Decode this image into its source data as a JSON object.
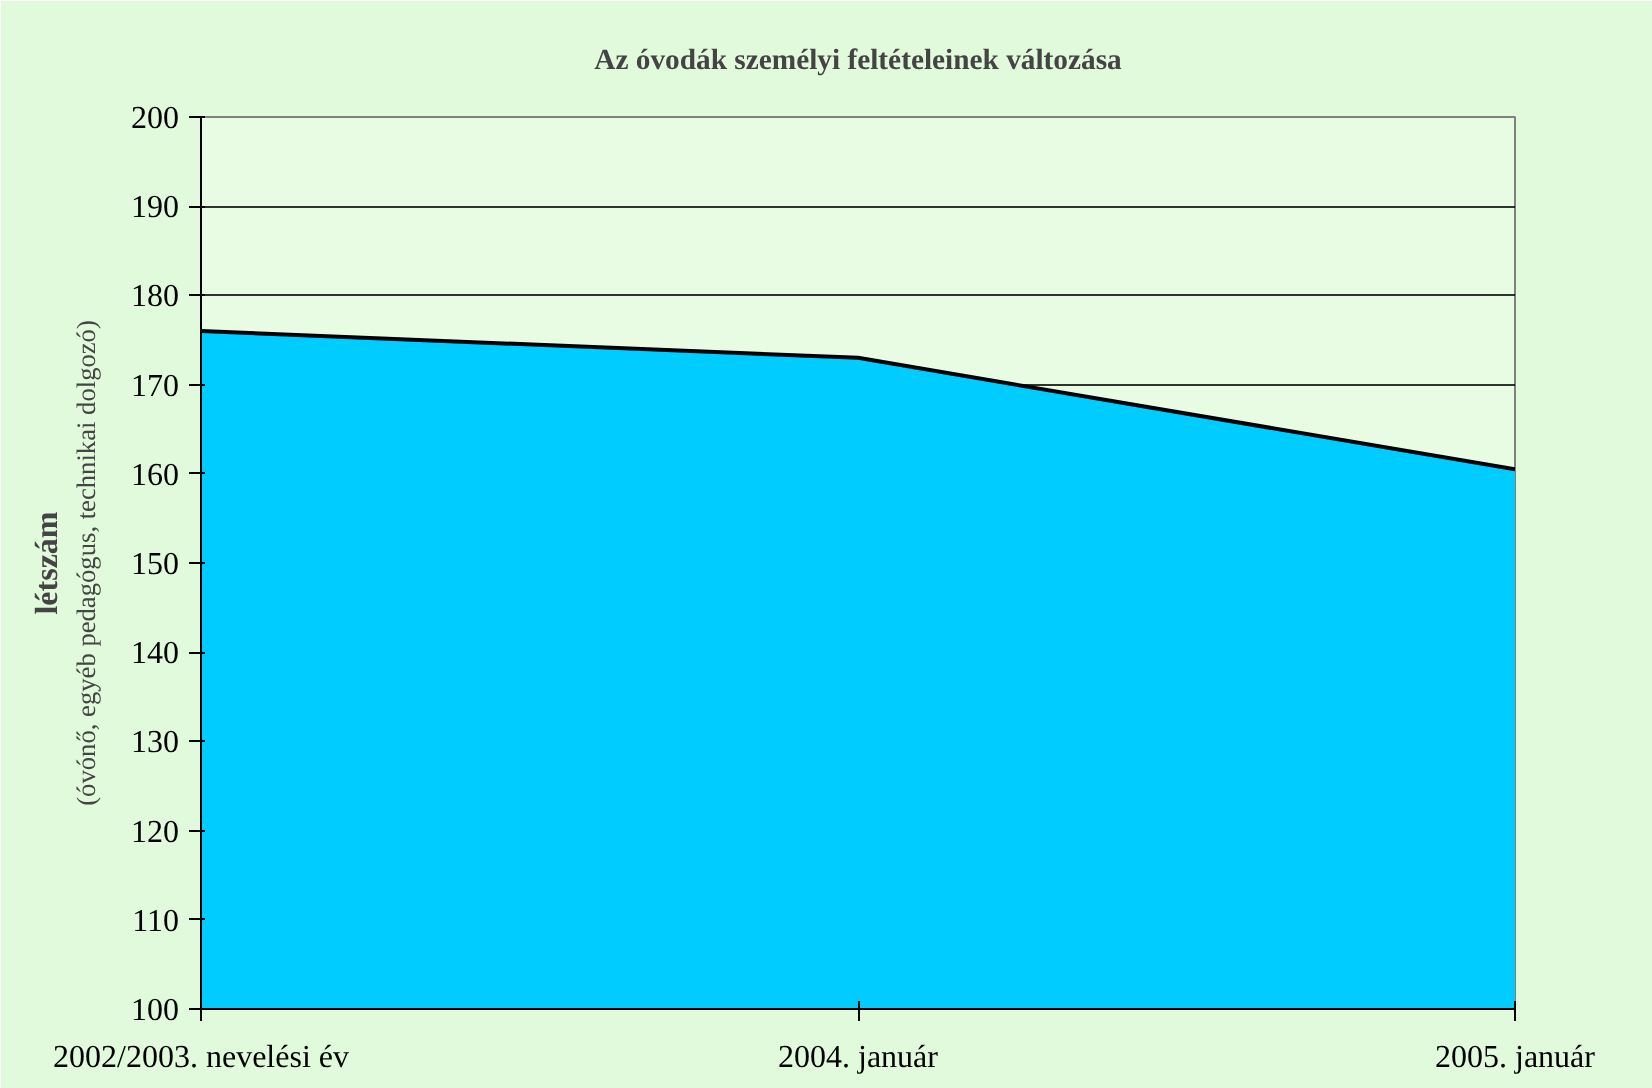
{
  "chart_data": {
    "type": "area",
    "title": "Az óvodák személyi feltételeinek változása",
    "ylabel": "létszám",
    "annotations": [
      "(óvónő, egyéb pedagógus, technikai dolgozó)"
    ],
    "categories": [
      "2002/2003. nevelési év",
      "2004. január",
      "2005. január"
    ],
    "series": [
      {
        "color": "#00ccff",
        "values": [
          176,
          173,
          160.5
        ]
      }
    ],
    "ylim": [
      100,
      200
    ],
    "yticks": [
      100,
      110,
      120,
      130,
      140,
      150,
      160,
      170,
      180,
      190,
      200
    ],
    "grid": "y"
  }
}
